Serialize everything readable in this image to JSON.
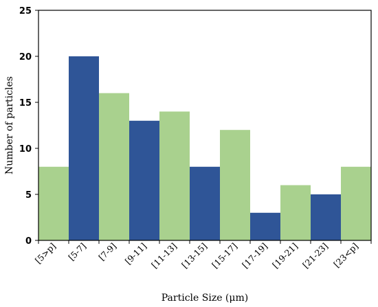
{
  "chart_data": {
    "type": "bar",
    "title": "",
    "xlabel": "Particle Size (μm)",
    "ylabel": "Number of particles",
    "ylim": [
      0,
      25
    ],
    "yticks": [
      0,
      5,
      10,
      15,
      20,
      25
    ],
    "grid": false,
    "legend": "none",
    "categories": [
      "[5>p]",
      "[5-7]",
      "[7-9]",
      "[9-11]",
      "[11-13]",
      "[13-15]",
      "[15-17]",
      "[17-19]",
      "[19-21]",
      "[21-23]",
      "[23<p]"
    ],
    "values": [
      8,
      20,
      16,
      13,
      14,
      8,
      12,
      3,
      6,
      5,
      8
    ],
    "bar_colors": [
      "#A9D18E",
      "#2F5597",
      "#A9D18E",
      "#2F5597",
      "#A9D18E",
      "#2F5597",
      "#A9D18E",
      "#2F5597",
      "#A9D18E",
      "#2F5597",
      "#A9D18E"
    ]
  }
}
